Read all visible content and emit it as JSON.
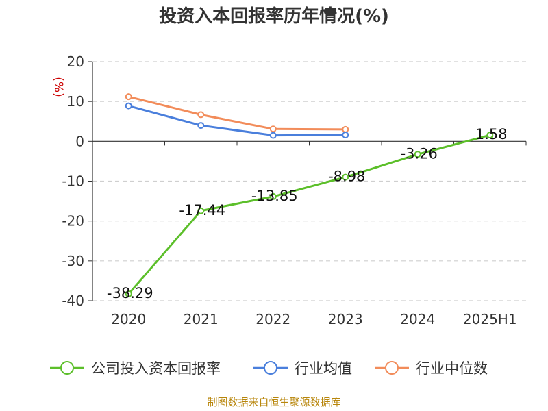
{
  "chart_data": {
    "type": "line",
    "title": "投资入本回报率历年情况(%)",
    "unit_label": "(%)",
    "categories": [
      "2020",
      "2021",
      "2022",
      "2023",
      "2024",
      "2025H1"
    ],
    "ylim": [
      -40,
      20
    ],
    "yticks": [
      20,
      10,
      0,
      -10,
      -20,
      -30,
      -40
    ],
    "grid": "horizontal-dashed",
    "legend_position": "bottom",
    "series": [
      {
        "name": "公司投入资本回报率",
        "color": "#5cbf2a",
        "values": [
          -38.29,
          -17.44,
          -13.85,
          -8.98,
          -3.26,
          1.58
        ],
        "labels": [
          "-38.29",
          "-17.44",
          "-13.85",
          "-8.98",
          "-3.26",
          "1.58"
        ]
      },
      {
        "name": "行业均值",
        "color": "#4a7fdc",
        "values": [
          8.9,
          4.0,
          1.5,
          1.6,
          null,
          null
        ]
      },
      {
        "name": "行业中位数",
        "color": "#f28c5a",
        "values": [
          11.2,
          6.7,
          3.1,
          3.0,
          null,
          null
        ]
      }
    ],
    "source": "制图数据来自恒生聚源数据库"
  }
}
